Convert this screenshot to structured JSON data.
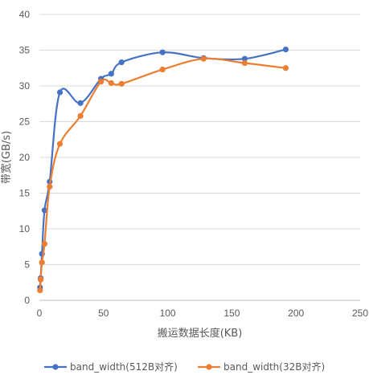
{
  "chart_data": {
    "type": "line",
    "title": "",
    "xlabel": "搬运数据长度(KB)",
    "ylabel": "带宽(GB/s)",
    "xlim": [
      0,
      250
    ],
    "ylim": [
      0,
      40
    ],
    "xticks": [
      0,
      50,
      100,
      150,
      200,
      250
    ],
    "yticks": [
      0,
      5,
      10,
      15,
      20,
      25,
      30,
      35,
      40
    ],
    "grid": "horizontal",
    "legend": "bottom",
    "smooth": true,
    "series": [
      {
        "name": "band_width(512B对齐)",
        "color": "#4472C4",
        "points": [
          [
            0.5,
            1.8
          ],
          [
            1,
            3.1
          ],
          [
            2,
            6.5
          ],
          [
            4,
            12.6
          ],
          [
            8,
            16.6
          ],
          [
            16,
            29.1
          ],
          [
            32,
            27.6
          ],
          [
            48,
            31.0
          ],
          [
            56,
            31.7
          ],
          [
            64,
            33.3
          ],
          [
            96,
            34.7
          ],
          [
            128,
            33.9
          ],
          [
            160,
            33.8
          ],
          [
            192,
            35.1
          ]
        ]
      },
      {
        "name": "band_width(32B对齐)",
        "color": "#ED7D31",
        "points": [
          [
            0.5,
            1.4
          ],
          [
            1,
            2.9
          ],
          [
            2,
            5.3
          ],
          [
            4,
            7.9
          ],
          [
            8,
            15.9
          ],
          [
            16,
            21.9
          ],
          [
            32,
            25.8
          ],
          [
            48,
            30.6
          ],
          [
            56,
            30.4
          ],
          [
            64,
            30.3
          ],
          [
            96,
            32.3
          ],
          [
            128,
            33.8
          ],
          [
            160,
            33.2
          ],
          [
            192,
            32.5
          ]
        ]
      }
    ]
  }
}
